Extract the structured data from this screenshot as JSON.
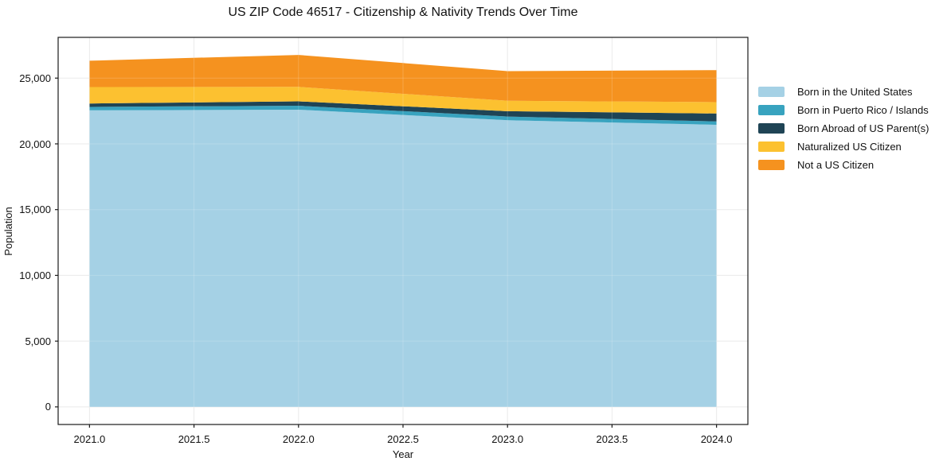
{
  "chart_data": {
    "type": "area",
    "stacked": true,
    "title": "US ZIP Code 46517 - Citizenship & Nativity Trends Over Time",
    "xlabel": "Year",
    "ylabel": "Population",
    "x": [
      2021,
      2022,
      2023,
      2024
    ],
    "series": [
      {
        "name": "Born in the United States",
        "color": "#a5d1e5",
        "values": [
          22550,
          22600,
          21800,
          21450
        ]
      },
      {
        "name": "Born in Puerto Rico / Islands",
        "color": "#38a3bf",
        "values": [
          260,
          300,
          280,
          260
        ]
      },
      {
        "name": "Born Abroad of US Parent(s)",
        "color": "#1f4455",
        "values": [
          260,
          330,
          400,
          600
        ]
      },
      {
        "name": "Naturalized US Citizen",
        "color": "#fcc130",
        "values": [
          1250,
          1100,
          800,
          860
        ]
      },
      {
        "name": "Not a US Citizen",
        "color": "#f5921f",
        "values": [
          2000,
          2430,
          2250,
          2440
        ]
      }
    ],
    "xticks": [
      2021.0,
      2021.5,
      2022.0,
      2022.5,
      2023.0,
      2023.5,
      2024.0
    ],
    "xtick_labels": [
      "2021.0",
      "2021.5",
      "2022.0",
      "2022.5",
      "2023.0",
      "2023.5",
      "2024.0"
    ],
    "yticks": [
      0,
      5000,
      10000,
      15000,
      20000,
      25000
    ],
    "ytick_labels": [
      "0",
      "5,000",
      "10,000",
      "15,000",
      "20,000",
      "25,000"
    ],
    "xlim": [
      2020.85,
      2024.15
    ],
    "ylim": [
      -1338,
      28098
    ],
    "grid": true,
    "legend_position": "right",
    "grid_color": "#e7e7e7",
    "axis_color": "#1a1a1a",
    "background_color": "#ffffff"
  }
}
